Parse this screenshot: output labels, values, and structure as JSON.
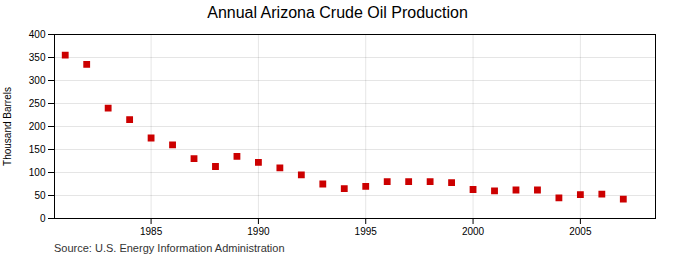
{
  "chart_data": {
    "type": "scatter",
    "title": "Annual Arizona Crude Oil Production",
    "ylabel": "Thousand Barrels",
    "source": "Source: U.S. Energy Information Administration",
    "x": [
      1981,
      1982,
      1983,
      1984,
      1985,
      1986,
      1987,
      1988,
      1989,
      1990,
      1991,
      1992,
      1993,
      1994,
      1995,
      1996,
      1997,
      1998,
      1999,
      2000,
      2001,
      2002,
      2003,
      2004,
      2005,
      2006,
      2007
    ],
    "values": [
      355,
      335,
      240,
      215,
      175,
      160,
      130,
      113,
      135,
      122,
      110,
      95,
      75,
      65,
      70,
      80,
      80,
      80,
      78,
      63,
      60,
      62,
      62,
      45,
      52,
      53,
      42
    ],
    "color": "#cc0000",
    "marker": "square",
    "xlim": [
      1980.5,
      2008.5
    ],
    "xticks": [
      1985,
      1990,
      1995,
      2000,
      2005
    ],
    "ylim": [
      0,
      400
    ],
    "yticks": [
      0,
      50,
      100,
      150,
      200,
      250,
      300,
      350,
      400
    ],
    "grid": true
  }
}
